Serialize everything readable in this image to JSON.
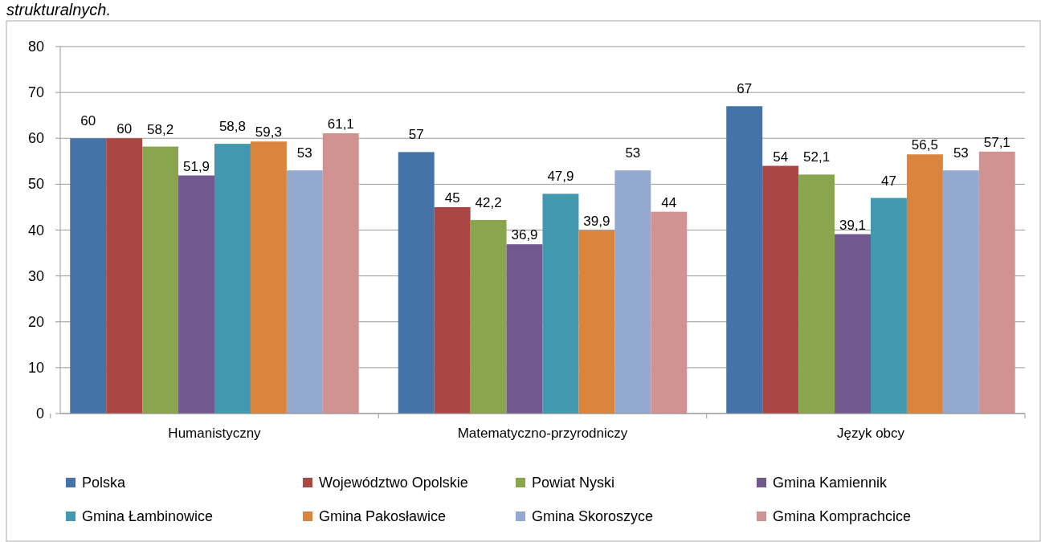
{
  "chart_data": {
    "type": "bar",
    "categories": [
      "Humanistyczny",
      "Matematyczno-przyrodniczy",
      "Język obcy"
    ],
    "series": [
      {
        "name": "Polska",
        "color": "#4572a7",
        "values": [
          60,
          57,
          67
        ],
        "value_labels": [
          "60",
          "57",
          "67"
        ]
      },
      {
        "name": "Województwo Opolskie",
        "color": "#aa4643",
        "values": [
          60,
          45,
          54
        ],
        "value_labels": [
          "60",
          "45",
          "54"
        ]
      },
      {
        "name": "Powiat Nyski",
        "color": "#89a54e",
        "values": [
          58.2,
          42.2,
          52.1
        ],
        "value_labels": [
          "58,2",
          "42,2",
          "52,1"
        ]
      },
      {
        "name": "Gmina Kamiennik",
        "color": "#71588f",
        "values": [
          51.9,
          36.9,
          39.1
        ],
        "value_labels": [
          "51,9",
          "36,9",
          "39,1"
        ]
      },
      {
        "name": "Gmina  Łambinowice",
        "color": "#4198af",
        "values": [
          58.8,
          47.9,
          47
        ],
        "value_labels": [
          "58,8",
          "47,9",
          "47"
        ]
      },
      {
        "name": "Gmina Pakosławice",
        "color": "#db843d",
        "values": [
          59.3,
          39.9,
          56.5
        ],
        "value_labels": [
          "59,3",
          "39,9",
          "56,5"
        ]
      },
      {
        "name": "Gmina Skoroszyce",
        "color": "#93a9cf",
        "values": [
          53,
          53,
          53
        ],
        "value_labels": [
          "53",
          "53",
          "53"
        ]
      },
      {
        "name": "Gmina Komprachcice",
        "color": "#d19392",
        "values": [
          61.1,
          44,
          57.1
        ],
        "value_labels": [
          "61,1",
          "44",
          "57,1"
        ]
      }
    ],
    "ylim": [
      0,
      80
    ],
    "yticks": [
      0,
      10,
      20,
      30,
      40,
      50,
      60,
      70,
      80
    ],
    "grid": "y",
    "legend": "bottom",
    "annotations": [
      "strukturalnych."
    ]
  }
}
